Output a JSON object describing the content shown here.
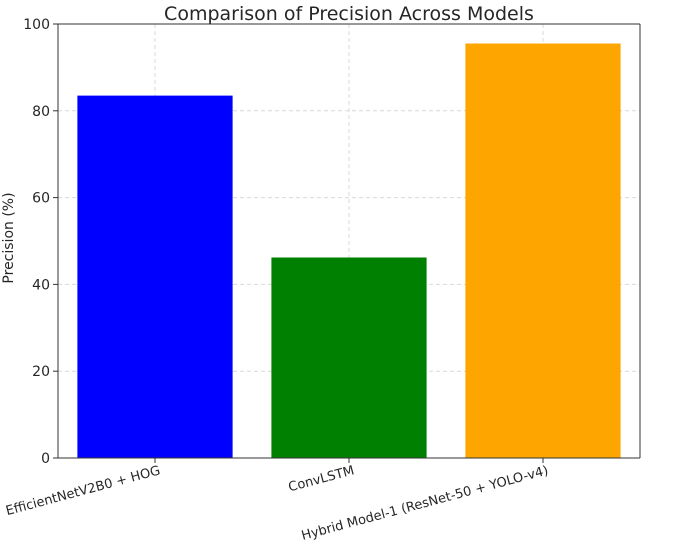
{
  "chart_data": {
    "type": "bar",
    "title": "Comparison of Precision Across Models",
    "xlabel": "",
    "ylabel": "Precision (%)",
    "categories": [
      "EfficientNetV2B0 + HOG",
      "ConvLSTM",
      "Hybrid Model-1 (ResNet-50 + YOLO-v4)"
    ],
    "values": [
      83.5,
      46.2,
      95.5
    ],
    "colors": [
      "#0000ff",
      "#008000",
      "#ffa500"
    ],
    "ylim": [
      0,
      100
    ],
    "yticks": [
      0,
      20,
      40,
      60,
      80,
      100
    ],
    "grid": true,
    "grid_style": "dashed",
    "xtick_rotation": "slanted"
  }
}
